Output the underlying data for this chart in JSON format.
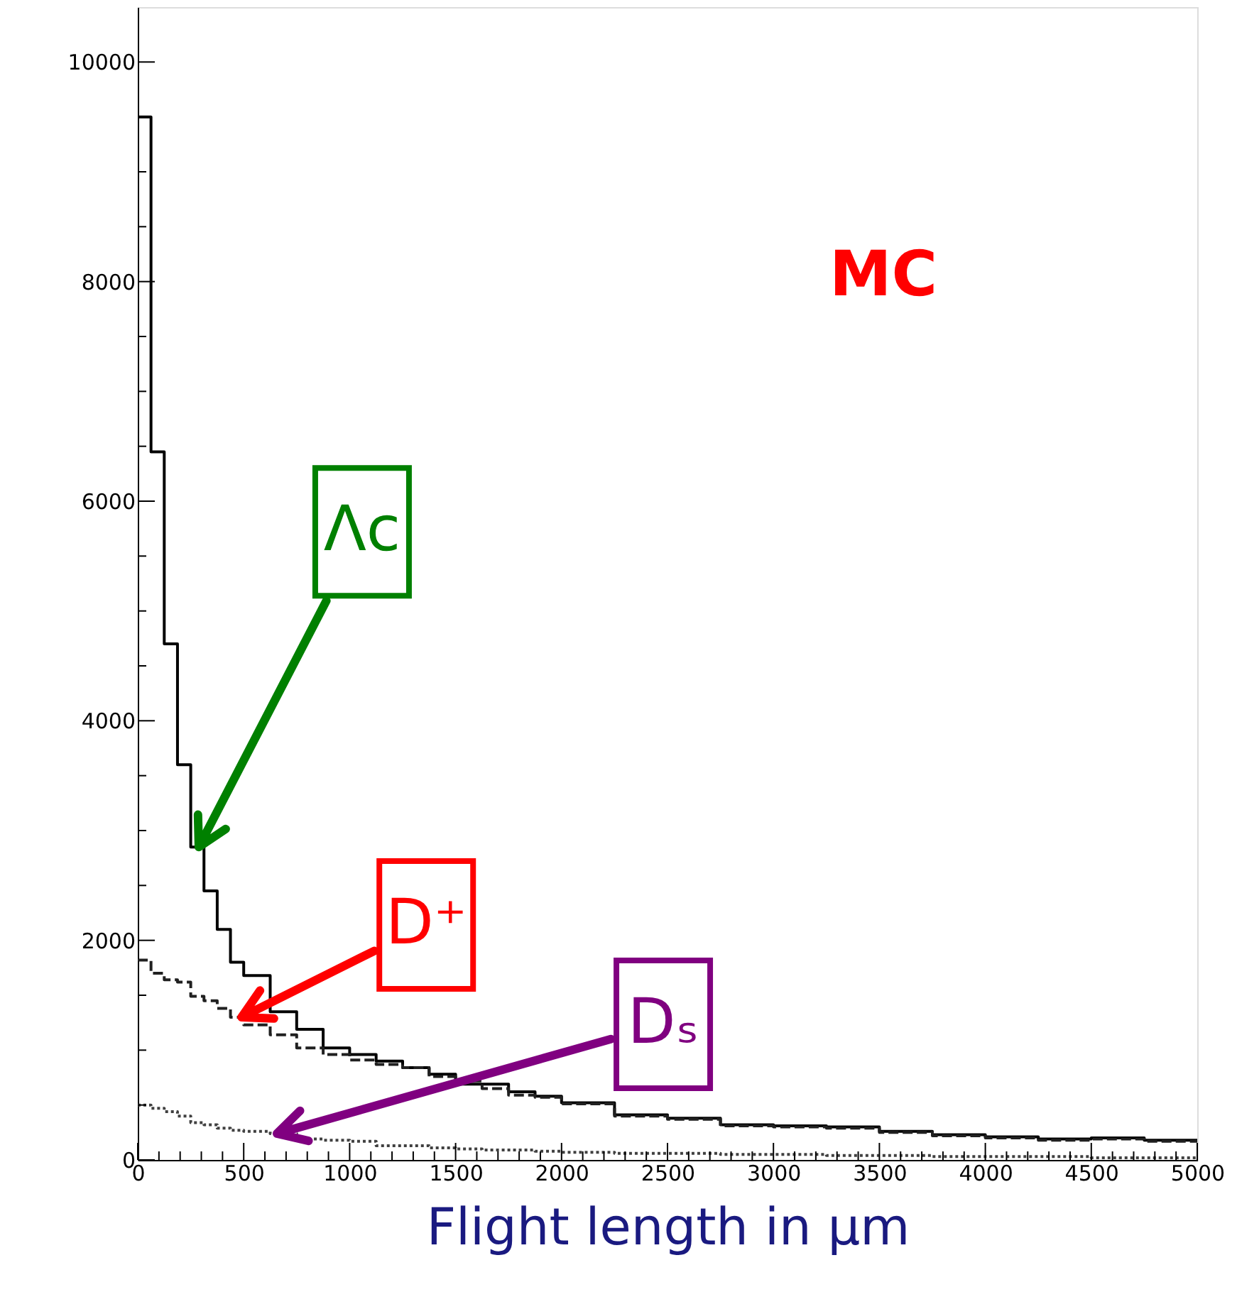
{
  "chart_data": {
    "type": "histogram",
    "xlabel": "Flight length in µm",
    "bins": [
      0,
      62.5,
      125,
      187.5,
      250,
      312.5,
      375,
      437.5,
      500,
      625,
      750,
      875,
      1000,
      1125,
      1250,
      1375,
      1500,
      1625,
      1750,
      1875,
      2000,
      2250,
      2500,
      2750,
      3000,
      3250,
      3500,
      3750,
      4000,
      4250,
      4500,
      4750,
      5000
    ],
    "series": [
      {
        "color": "#000000",
        "line_style": "solid",
        "values": [
          9500,
          6450,
          4700,
          3600,
          2850,
          2450,
          2100,
          1800,
          1680,
          1350,
          1190,
          1020,
          960,
          900,
          840,
          780,
          690,
          690,
          620,
          580,
          520,
          410,
          380,
          320,
          310,
          300,
          260,
          230,
          210,
          190,
          200,
          180
        ]
      },
      {
        "color": "#202020",
        "line_style": "dashed",
        "values": [
          1820,
          1700,
          1640,
          1620,
          1490,
          1450,
          1380,
          1300,
          1230,
          1140,
          1020,
          960,
          910,
          870,
          840,
          760,
          720,
          650,
          590,
          570,
          510,
          400,
          370,
          310,
          300,
          290,
          250,
          220,
          200,
          180,
          190,
          170
        ]
      },
      {
        "color": "#404040",
        "line_style": "dotted",
        "values": [
          500,
          470,
          440,
          400,
          340,
          320,
          290,
          270,
          260,
          240,
          190,
          180,
          170,
          130,
          130,
          110,
          100,
          90,
          90,
          80,
          70,
          60,
          60,
          50,
          50,
          40,
          40,
          30,
          30,
          30,
          20,
          20
        ]
      }
    ],
    "xlim": [
      0,
      5000
    ],
    "ylim": [
      0,
      10500
    ],
    "xticks": [
      0,
      {
        "value": 100,
        "label": null
      },
      {
        "value": 200,
        "label": null
      },
      {
        "value": 300,
        "label": null
      },
      {
        "value": 400,
        "label": null
      },
      500,
      {
        "value": 600,
        "label": null
      },
      {
        "value": 700,
        "label": null
      },
      {
        "value": 800,
        "label": null
      },
      {
        "value": 900,
        "label": null
      },
      1000,
      {
        "value": 1100,
        "label": null
      },
      {
        "value": 1200,
        "label": null
      },
      {
        "value": 1300,
        "label": null
      },
      {
        "value": 1400,
        "label": null
      },
      1500,
      {
        "value": 1600,
        "label": null
      },
      {
        "value": 1700,
        "label": null
      },
      {
        "value": 1800,
        "label": null
      },
      {
        "value": 1900,
        "label": null
      },
      2000,
      {
        "value": 2100,
        "label": null
      },
      {
        "value": 2200,
        "label": null
      },
      {
        "value": 2300,
        "label": null
      },
      {
        "value": 2400,
        "label": null
      },
      2500,
      {
        "value": 2600,
        "label": null
      },
      {
        "value": 2700,
        "label": null
      },
      {
        "value": 2800,
        "label": null
      },
      {
        "value": 2900,
        "label": null
      },
      3000,
      {
        "value": 3100,
        "label": null
      },
      {
        "value": 3200,
        "label": null
      },
      {
        "value": 3300,
        "label": null
      },
      {
        "value": 3400,
        "label": null
      },
      3500,
      {
        "value": 3600,
        "label": null
      },
      {
        "value": 3700,
        "label": null
      },
      {
        "value": 3800,
        "label": null
      },
      {
        "value": 3900,
        "label": null
      },
      4000,
      {
        "value": 4100,
        "label": null
      },
      {
        "value": 4200,
        "label": null
      },
      {
        "value": 4300,
        "label": null
      },
      {
        "value": 4400,
        "label": null
      },
      4500,
      {
        "value": 4600,
        "label": null
      },
      {
        "value": 4700,
        "label": null
      },
      {
        "value": 4800,
        "label": null
      },
      {
        "value": 4900,
        "label": null
      },
      5000
    ],
    "yticks": [
      0,
      {
        "value": 500,
        "label": null
      },
      {
        "value": 1000,
        "label": null
      },
      {
        "value": 1500,
        "label": null
      },
      2000,
      {
        "value": 2500,
        "label": null
      },
      {
        "value": 3000,
        "label": null
      },
      {
        "value": 3500,
        "label": null
      },
      4000,
      {
        "value": 4500,
        "label": null
      },
      {
        "value": 5000,
        "label": null
      },
      {
        "value": 5500,
        "label": null
      },
      6000,
      {
        "value": 6500,
        "label": null
      },
      {
        "value": 7000,
        "label": null
      },
      {
        "value": 7500,
        "label": null
      },
      8000,
      {
        "value": 8500,
        "label": null
      },
      {
        "value": 9000,
        "label": null
      },
      {
        "value": 9500,
        "label": null
      },
      10000
    ],
    "grid": false,
    "annotations": [
      "MC",
      {
        "text": "Λc",
        "x": 288,
        "y": 2850
      },
      {
        "text": "D⁺",
        "x": 490,
        "y": 1300
      },
      {
        "text": "Dₛ",
        "x": 657,
        "y": 240
      }
    ]
  }
}
